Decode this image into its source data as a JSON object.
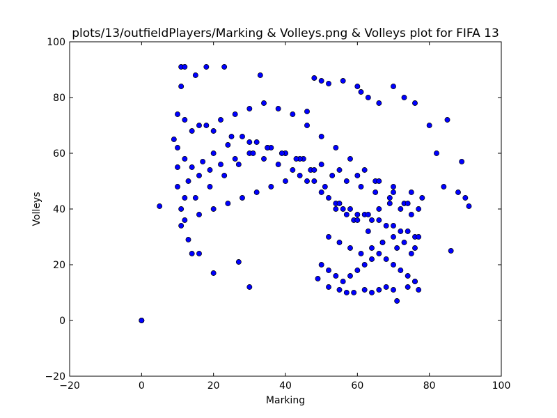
{
  "chart_data": {
    "type": "scatter",
    "title": "plots/13/outfieldPlayers/Marking & Volleys.png & Volleys plot for FIFA 13",
    "xlabel": "Marking",
    "ylabel": "Volleys",
    "xlim": [
      -20,
      100
    ],
    "ylim": [
      -20,
      100
    ],
    "xticks": [
      "−20",
      "0",
      "20",
      "40",
      "60",
      "80",
      "100"
    ],
    "yticks": [
      "−20",
      "0",
      "20",
      "40",
      "60",
      "80",
      "100"
    ],
    "grid": false,
    "legend": "none",
    "colors": {
      "marker_fill": "#0000ff",
      "marker_edge": "#000000"
    },
    "series": [
      {
        "x": [
          0,
          0,
          0,
          5,
          9,
          10,
          10,
          11,
          11,
          11,
          12,
          12,
          13,
          14,
          15,
          16,
          18,
          20,
          23,
          27,
          30,
          33,
          12,
          16,
          20,
          25,
          30,
          35,
          40,
          45,
          50,
          55,
          60,
          65,
          70,
          75,
          78,
          80,
          82,
          84,
          85,
          86,
          88,
          89,
          90,
          91,
          46,
          48,
          50,
          52,
          56,
          60,
          61,
          63,
          66,
          70,
          73,
          76,
          49,
          52,
          55,
          57,
          59,
          62,
          64,
          66,
          68,
          70,
          71,
          74,
          76,
          77,
          10,
          12,
          14,
          17,
          20,
          24,
          28,
          32,
          36,
          40,
          44,
          48,
          52,
          56,
          60,
          64,
          68,
          72,
          76,
          10,
          13,
          16,
          19,
          22,
          26,
          30,
          34,
          38,
          42,
          46,
          50,
          54,
          58,
          62,
          66,
          70,
          74,
          77,
          11,
          15,
          19,
          23,
          27,
          31,
          35,
          39,
          43,
          47,
          51,
          55,
          59,
          63,
          67,
          71,
          75,
          12,
          16,
          20,
          24,
          28,
          32,
          36,
          40,
          44,
          48,
          53,
          57,
          61,
          65,
          69,
          73,
          77,
          14,
          18,
          22,
          26,
          30,
          34,
          38,
          42,
          46,
          50,
          54,
          58,
          62,
          66,
          70,
          74,
          50,
          52,
          54,
          56,
          58,
          60,
          62,
          64,
          66,
          68,
          70,
          72,
          74,
          76,
          52,
          55,
          58,
          61,
          64,
          67,
          70,
          73,
          76,
          54,
          57,
          60,
          63,
          66,
          69,
          72,
          75
        ],
        "y": [
          0,
          0,
          0,
          41,
          65,
          74,
          55,
          91,
          84,
          34,
          91,
          44,
          29,
          24,
          88,
          24,
          91,
          17,
          91,
          21,
          12,
          88,
          72,
          70,
          68,
          66,
          64,
          62,
          60,
          58,
          56,
          54,
          52,
          50,
          48,
          46,
          44,
          70,
          60,
          48,
          72,
          25,
          46,
          57,
          44,
          41,
          75,
          87,
          86,
          85,
          86,
          84,
          82,
          80,
          78,
          84,
          80,
          78,
          15,
          12,
          11,
          10,
          10,
          11,
          10,
          11,
          12,
          11,
          7,
          12,
          14,
          11,
          62,
          58,
          55,
          57,
          60,
          63,
          66,
          64,
          62,
          60,
          58,
          50,
          44,
          40,
          38,
          36,
          34,
          32,
          30,
          48,
          50,
          52,
          54,
          56,
          58,
          60,
          58,
          56,
          54,
          50,
          46,
          42,
          40,
          38,
          36,
          34,
          32,
          30,
          40,
          44,
          48,
          52,
          56,
          60,
          62,
          60,
          58,
          54,
          48,
          42,
          36,
          32,
          28,
          26,
          24,
          36,
          38,
          40,
          42,
          44,
          46,
          48,
          50,
          52,
          54,
          52,
          50,
          48,
          46,
          44,
          42,
          40,
          68,
          70,
          72,
          74,
          76,
          78,
          76,
          74,
          70,
          66,
          62,
          58,
          54,
          50,
          46,
          42,
          20,
          18,
          16,
          14,
          16,
          18,
          20,
          22,
          24,
          22,
          20,
          18,
          16,
          14,
          30,
          28,
          26,
          24,
          26,
          28,
          30,
          28,
          26,
          40,
          38,
          36,
          38,
          40,
          42,
          40,
          38
        ]
      }
    ]
  }
}
